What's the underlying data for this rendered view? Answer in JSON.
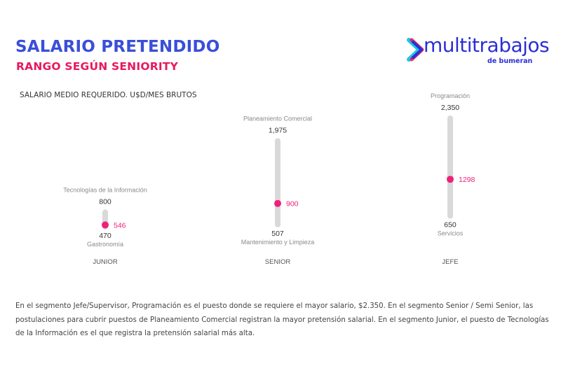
{
  "header": {
    "title": "SALARIO PRETENDIDO",
    "subtitle": "RANGO SEGÚN SENIORITY"
  },
  "logo": {
    "brand": "multitrabajos",
    "tagline": "de bumeran",
    "colors": {
      "primary": "#2b2fd6",
      "accent_pink": "#e8185f",
      "accent_cyan": "#1ec8e0"
    }
  },
  "colors": {
    "title": "#3a4fd8",
    "subtitle": "#e8185f",
    "bar": "#d9d9d9",
    "marker": "#f0207a"
  },
  "chart_data": {
    "type": "range",
    "title": "SALARIO MEDIO REQUERIDO. U$D/MES BRUTOS",
    "xlabel": "",
    "ylabel": "U$D/mes brutos",
    "grid": false,
    "categories": [
      "JUNIOR",
      "SENIOR",
      "JEFE"
    ],
    "series": [
      {
        "category": "JUNIOR",
        "max": 800,
        "max_label": "800",
        "max_position": "Tecnologías de la Información",
        "min": 470,
        "min_label": "470",
        "min_position": "Gastronomía",
        "mean": 546,
        "mean_label": "546"
      },
      {
        "category": "SENIOR",
        "max": 1975,
        "max_label": "1,975",
        "max_position": "Planeamiento Comercial",
        "min": 507,
        "min_label": "507",
        "min_position": "Mantenimiento y Limpieza",
        "mean": 900,
        "mean_label": "900"
      },
      {
        "category": "JEFE",
        "max": 2350,
        "max_label": "2,350",
        "max_position": "Programación",
        "min": 650,
        "min_label": "650",
        "min_position": "Servicios",
        "mean": 1298,
        "mean_label": "1298"
      }
    ]
  },
  "description": "En el segmento Jefe/Supervisor, Programación es el puesto donde se requiere el mayor salario, $2.350. En el segmento Senior / Semi Senior, las postulaciones para cubrir puestos de Planeamiento Comercial registran la mayor pretensión salarial. En el segmento Junior, el puesto de Tecnologías de la Información es el que registra la pretensión salarial más alta."
}
